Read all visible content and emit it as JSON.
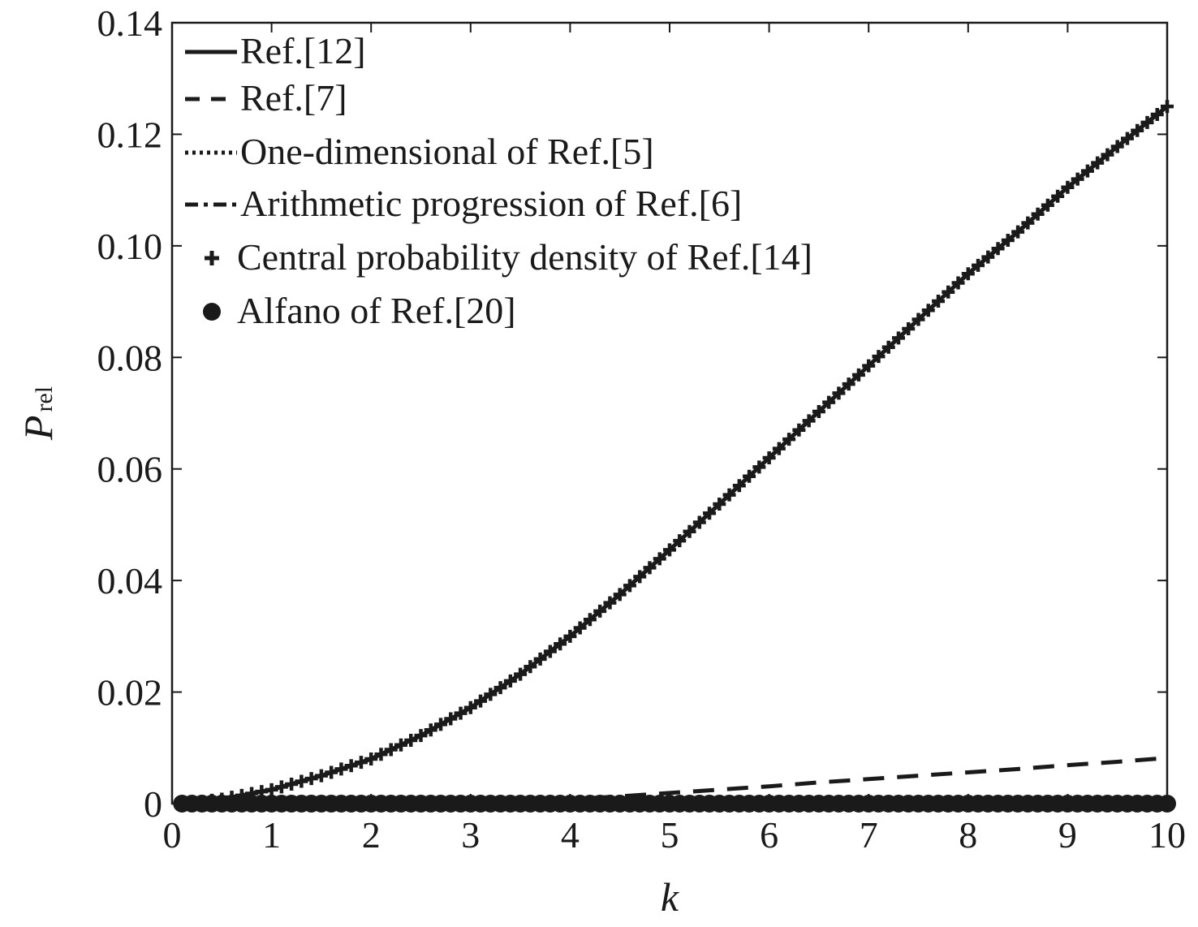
{
  "chart_data": {
    "type": "line",
    "xlabel": "k",
    "ylabel_main": "P",
    "ylabel_sub": "rel",
    "xlim": [
      0,
      10
    ],
    "ylim": [
      0,
      0.14
    ],
    "xticks": [
      0,
      1,
      2,
      3,
      4,
      5,
      6,
      7,
      8,
      9,
      10
    ],
    "xtick_labels": [
      "0",
      "1",
      "2",
      "3",
      "4",
      "5",
      "6",
      "7",
      "8",
      "9",
      "10"
    ],
    "yticks": [
      0,
      0.02,
      0.04,
      0.06,
      0.08,
      0.1,
      0.12,
      0.14
    ],
    "ytick_labels": [
      "0",
      "0.02",
      "0.04",
      "0.06",
      "0.08",
      "0.10",
      "0.12",
      "0.14"
    ],
    "grid": false,
    "legend_position": "top-left",
    "color": "#1a1a1a",
    "x": [
      0.1,
      0.5,
      1.0,
      1.5,
      2.0,
      2.5,
      3.0,
      3.5,
      4.0,
      4.5,
      5.0,
      5.5,
      6.0,
      6.5,
      7.0,
      7.5,
      8.0,
      8.5,
      9.0,
      9.5,
      10.0
    ],
    "series": [
      {
        "name": "Ref.[12]",
        "style": "solid",
        "values": [
          0.0,
          0.0008,
          0.0025,
          0.005,
          0.008,
          0.0122,
          0.0172,
          0.0232,
          0.03,
          0.0375,
          0.0455,
          0.0537,
          0.062,
          0.0703,
          0.0785,
          0.0868,
          0.095,
          0.1025,
          0.1105,
          0.1178,
          0.125
        ]
      },
      {
        "name": "Ref.[7]",
        "style": "dashed",
        "values": [
          0.0,
          0.0,
          0.0,
          0.0,
          0.0,
          0.0001,
          0.0002,
          0.0004,
          0.0008,
          0.0013,
          0.0019,
          0.0025,
          0.0031,
          0.0038,
          0.0044,
          0.005,
          0.0056,
          0.0062,
          0.0069,
          0.0075,
          0.0082
        ]
      },
      {
        "name": "One-dimensional of Ref.[5]",
        "style": "dotted",
        "values": [
          0.0,
          0.0008,
          0.0025,
          0.005,
          0.008,
          0.0122,
          0.0172,
          0.0232,
          0.03,
          0.0375,
          0.0455,
          0.0537,
          0.062,
          0.0703,
          0.0785,
          0.0868,
          0.095,
          0.1025,
          0.1105,
          0.1178,
          0.125
        ]
      },
      {
        "name": "Arithmetic progression of Ref.[6]",
        "style": "dashdot",
        "values": [
          0.0,
          0.0008,
          0.0025,
          0.005,
          0.008,
          0.0122,
          0.0172,
          0.0232,
          0.03,
          0.0375,
          0.0455,
          0.0537,
          0.062,
          0.0703,
          0.0785,
          0.0868,
          0.095,
          0.1025,
          0.1105,
          0.1178,
          0.125
        ]
      },
      {
        "name": "Central probability density of Ref.[14]",
        "style": "plus",
        "values": [
          0.0,
          0.0008,
          0.0025,
          0.005,
          0.008,
          0.0122,
          0.0172,
          0.0232,
          0.03,
          0.0375,
          0.0455,
          0.0537,
          0.062,
          0.0703,
          0.0785,
          0.0868,
          0.095,
          0.1025,
          0.1105,
          0.1178,
          0.125
        ]
      },
      {
        "name": "Alfano of Ref.[20]",
        "style": "dot",
        "values": [
          0.0,
          0.0,
          0.0,
          0.0,
          0.0,
          0.0,
          0.0,
          0.0,
          0.0,
          0.0,
          0.0,
          0.0,
          0.0,
          0.0,
          0.0,
          0.0,
          0.0,
          0.0,
          0.0,
          0.0,
          0.0
        ]
      }
    ]
  }
}
